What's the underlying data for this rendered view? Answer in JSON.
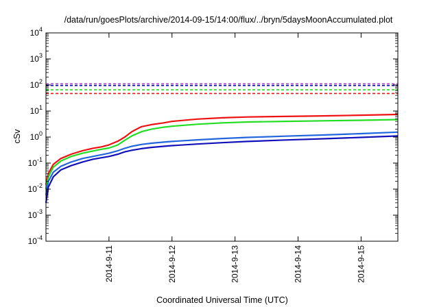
{
  "chart_data": {
    "type": "line",
    "title": "/data/run/goesPlots/archive/2014-09-15/14:00/flux/../bryn/5daysMoonAccumulated.plot",
    "xlabel": "Coordinated Universal Time (UTC)",
    "ylabel": "cSv",
    "y_scale": "log",
    "ylim": [
      0.0001,
      10000
    ],
    "xlim": [
      "2014-09-10T00:00",
      "2014-09-15T14:00"
    ],
    "y_ticks": [
      {
        "base": "10",
        "exp": "-4",
        "value": 0.0001
      },
      {
        "base": "10",
        "exp": "-3",
        "value": 0.001
      },
      {
        "base": "10",
        "exp": "-2",
        "value": 0.01
      },
      {
        "base": "10",
        "exp": "-1",
        "value": 0.1
      },
      {
        "base": "10",
        "exp": "0",
        "value": 1
      },
      {
        "base": "10",
        "exp": "1",
        "value": 10
      },
      {
        "base": "10",
        "exp": "2",
        "value": 100
      },
      {
        "base": "10",
        "exp": "3",
        "value": 1000
      },
      {
        "base": "10",
        "exp": "4",
        "value": 10000
      }
    ],
    "x_ticks": [
      {
        "label": "2014-9-11",
        "value": "2014-09-11T00:00"
      },
      {
        "label": "2014-9-12",
        "value": "2014-09-12T00:00"
      },
      {
        "label": "2014-9-13",
        "value": "2014-09-13T00:00"
      },
      {
        "label": "2014-9-14",
        "value": "2014-09-14T00:00"
      },
      {
        "label": "2014-9-15",
        "value": "2014-09-15T00:00"
      }
    ],
    "grid": false,
    "legend": "none",
    "series": [
      {
        "color": "#ee1111",
        "x": [
          "2014-09-10T00:00",
          "2014-09-10T00:55",
          "2014-09-10T02:50",
          "2014-09-10T05:40",
          "2014-09-10T09:35",
          "2014-09-10T13:55",
          "2014-09-10T17:50",
          "2014-09-10T21:10",
          "2014-09-11T00:00",
          "2014-09-11T03:25",
          "2014-09-11T06:00",
          "2014-09-11T08:40",
          "2014-09-11T12:20",
          "2014-09-11T16:05",
          "2014-09-11T20:50",
          "2014-09-12T00:00",
          "2014-09-12T09:35",
          "2014-09-12T19:10",
          "2014-09-13T04:45",
          "2014-09-13T19:10",
          "2014-09-14T09:35",
          "2014-09-15T00:00",
          "2014-09-15T14:00"
        ],
        "values": [
          0.015,
          0.04,
          0.09,
          0.15,
          0.22,
          0.3,
          0.37,
          0.42,
          0.5,
          0.7,
          1.0,
          1.6,
          2.5,
          3.0,
          3.5,
          4.0,
          4.9,
          5.5,
          5.9,
          6.2,
          6.5,
          6.9,
          7.4
        ]
      },
      {
        "color": "#22dd22",
        "x": [
          "2014-09-10T00:00",
          "2014-09-10T00:55",
          "2014-09-10T02:50",
          "2014-09-10T05:40",
          "2014-09-10T09:35",
          "2014-09-10T13:55",
          "2014-09-10T17:50",
          "2014-09-10T21:10",
          "2014-09-11T00:00",
          "2014-09-11T03:25",
          "2014-09-11T06:00",
          "2014-09-11T08:40",
          "2014-09-11T12:20",
          "2014-09-11T16:05",
          "2014-09-11T20:50",
          "2014-09-12T00:00",
          "2014-09-12T09:35",
          "2014-09-12T19:10",
          "2014-09-13T04:45",
          "2014-09-13T19:10",
          "2014-09-14T09:35",
          "2014-09-15T00:00",
          "2014-09-15T14:00"
        ],
        "values": [
          0.01,
          0.03,
          0.07,
          0.12,
          0.18,
          0.24,
          0.29,
          0.34,
          0.38,
          0.5,
          0.75,
          1.1,
          1.6,
          2.0,
          2.4,
          2.6,
          3.1,
          3.5,
          3.8,
          4.0,
          4.2,
          4.4,
          4.7
        ]
      },
      {
        "color": "#2266dd",
        "x": [
          "2014-09-10T00:00",
          "2014-09-10T00:55",
          "2014-09-10T02:50",
          "2014-09-10T05:40",
          "2014-09-10T09:35",
          "2014-09-10T13:55",
          "2014-09-10T17:50",
          "2014-09-10T21:10",
          "2014-09-11T00:00",
          "2014-09-11T03:25",
          "2014-09-11T06:00",
          "2014-09-11T08:40",
          "2014-09-11T12:20",
          "2014-09-11T16:05",
          "2014-09-11T20:50",
          "2014-09-12T00:00",
          "2014-09-12T09:35",
          "2014-09-12T19:10",
          "2014-09-13T04:45",
          "2014-09-13T19:10",
          "2014-09-14T09:35",
          "2014-09-15T00:00",
          "2014-09-15T14:00"
        ],
        "values": [
          0.006,
          0.02,
          0.045,
          0.075,
          0.11,
          0.15,
          0.18,
          0.21,
          0.24,
          0.3,
          0.37,
          0.44,
          0.52,
          0.58,
          0.64,
          0.68,
          0.78,
          0.88,
          0.97,
          1.08,
          1.2,
          1.35,
          1.55
        ]
      },
      {
        "color": "#1111bb",
        "x": [
          "2014-09-10T00:00",
          "2014-09-10T00:55",
          "2014-09-10T02:50",
          "2014-09-10T05:40",
          "2014-09-10T09:35",
          "2014-09-10T13:55",
          "2014-09-10T17:50",
          "2014-09-10T21:10",
          "2014-09-11T00:00",
          "2014-09-11T03:25",
          "2014-09-11T06:00",
          "2014-09-11T08:40",
          "2014-09-11T12:20",
          "2014-09-11T16:05",
          "2014-09-11T20:50",
          "2014-09-12T00:00",
          "2014-09-12T09:35",
          "2014-09-12T19:10",
          "2014-09-13T04:45",
          "2014-09-13T19:10",
          "2014-09-14T09:35",
          "2014-09-15T00:00",
          "2014-09-15T14:00"
        ],
        "values": [
          0.003,
          0.012,
          0.03,
          0.055,
          0.08,
          0.11,
          0.14,
          0.16,
          0.18,
          0.22,
          0.27,
          0.31,
          0.36,
          0.4,
          0.44,
          0.47,
          0.54,
          0.61,
          0.68,
          0.77,
          0.86,
          0.97,
          1.1
        ]
      }
    ],
    "reference_lines": [
      {
        "color": "#9933cc",
        "value": 110,
        "style": "dashed"
      },
      {
        "color": "#1111bb",
        "value": 95,
        "style": "dashed"
      },
      {
        "color": "#22dd22",
        "value": 65,
        "style": "dashed"
      },
      {
        "color": "#ee1111",
        "value": 47,
        "style": "dashed"
      }
    ]
  }
}
